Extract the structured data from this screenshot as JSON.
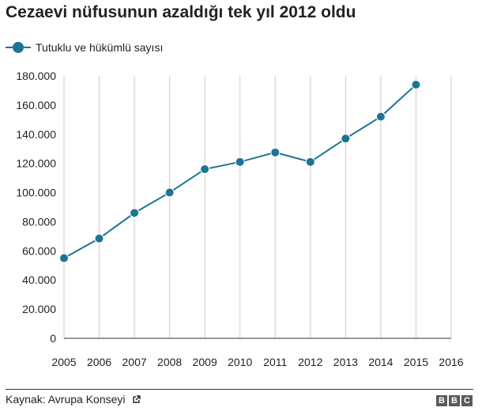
{
  "title": "Cezaevi nüfusunun azaldığı tek yıl 2012 oldu",
  "source": "Kaynak: Avrupa Konseyi",
  "source_icon": "external-link-icon",
  "logo_letters": [
    "B",
    "B",
    "C"
  ],
  "colors": {
    "series": "#1d7593",
    "grid": "#cccccc",
    "axis": "#333333",
    "text": "#222222"
  },
  "chart_data": {
    "type": "line",
    "title": "Cezaevi nüfusunun azaldığı tek yıl 2012 oldu",
    "xlabel": "",
    "ylabel": "",
    "x": [
      2005,
      2006,
      2007,
      2008,
      2009,
      2010,
      2011,
      2012,
      2013,
      2014,
      2015
    ],
    "xticks": [
      "2005",
      "2006",
      "2007",
      "2008",
      "2009",
      "2010",
      "2011",
      "2012",
      "2013",
      "2014",
      "2015",
      "2016"
    ],
    "xlim": [
      2005,
      2016
    ],
    "ylim": [
      0,
      180000
    ],
    "yticks": [
      0,
      20000,
      40000,
      60000,
      80000,
      100000,
      120000,
      140000,
      160000,
      180000
    ],
    "ytick_labels": [
      "0",
      "20.000",
      "40.000",
      "60.000",
      "80.000",
      "100.000",
      "120.000",
      "140.000",
      "160.000",
      "180.000"
    ],
    "grid": "vertical",
    "legend_position": "top-left",
    "series": [
      {
        "name": "Tutuklu ve hükümlü sayısı",
        "values": [
          55000,
          68500,
          86000,
          100000,
          116000,
          121000,
          127500,
          121000,
          137000,
          152000,
          174000
        ]
      }
    ]
  }
}
